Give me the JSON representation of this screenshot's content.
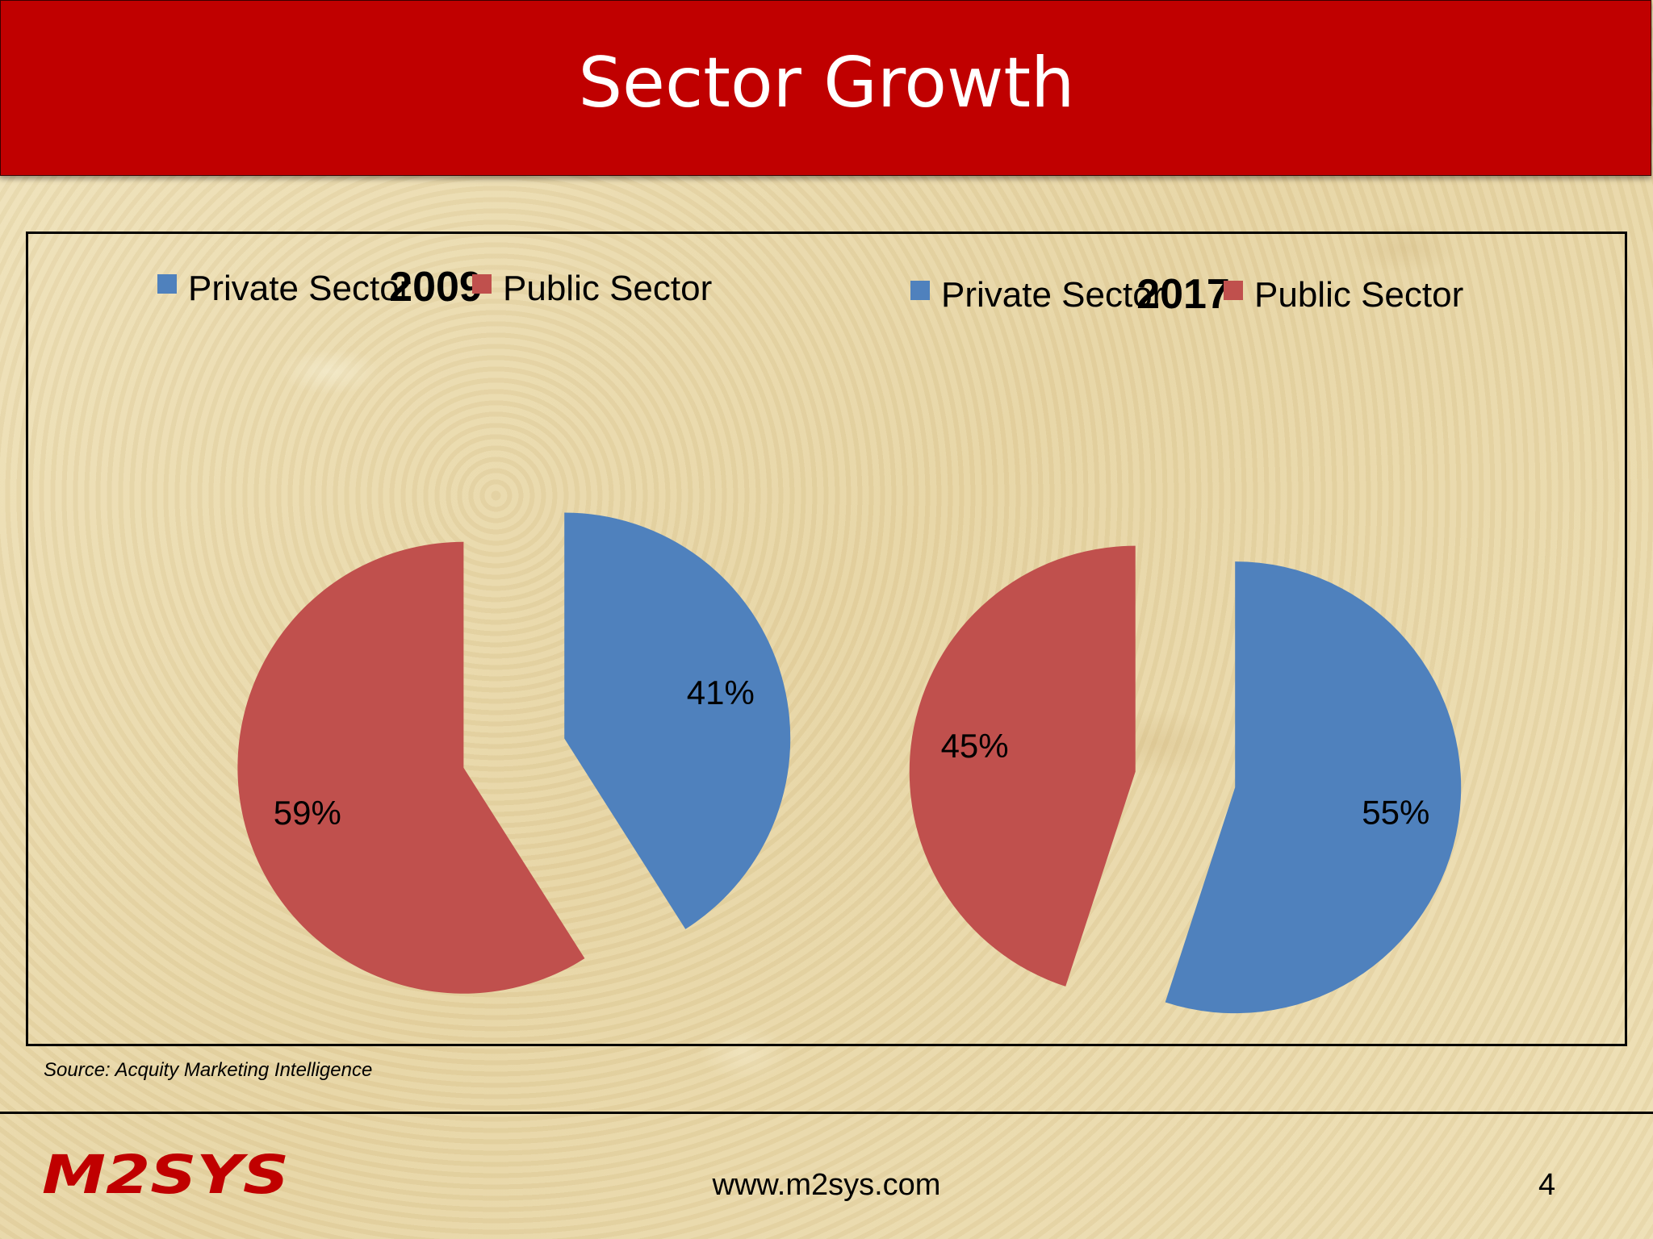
{
  "slide": {
    "title": "Sector Growth",
    "source": "Source: Acquity Marketing Intelligence",
    "footer_url": "www.m2sys.com",
    "page_number": "4",
    "logo_text": "M2SYS"
  },
  "colors": {
    "header": "#c00000",
    "private": "#4f81bd",
    "public": "#c0504d"
  },
  "chart_data": [
    {
      "type": "pie",
      "title": "2009",
      "legend": [
        "Private Sector",
        "Public Sector"
      ],
      "legend_position": "top",
      "slices": [
        {
          "name": "Private Sector",
          "value": 41,
          "label": "41%"
        },
        {
          "name": "Public Sector",
          "value": 59,
          "label": "59%"
        }
      ],
      "exploded": true
    },
    {
      "type": "pie",
      "title": "2017",
      "legend": [
        "Private Sector",
        "Public Sector"
      ],
      "legend_position": "top",
      "slices": [
        {
          "name": "Private Sector",
          "value": 55,
          "label": "55%"
        },
        {
          "name": "Public Sector",
          "value": 45,
          "label": "45%"
        }
      ],
      "exploded": true
    }
  ]
}
